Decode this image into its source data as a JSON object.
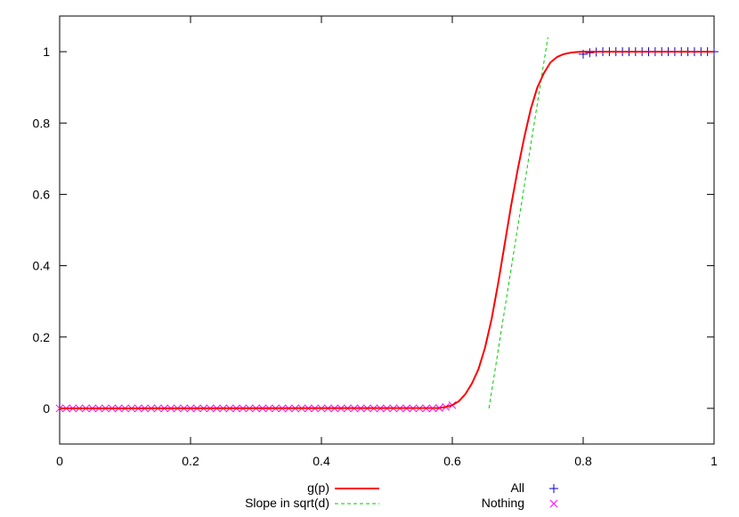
{
  "chart_data": {
    "type": "line",
    "title": "",
    "xlabel": "",
    "ylabel": "",
    "xlim": [
      0,
      1
    ],
    "ylim": [
      -0.1,
      1.1
    ],
    "x_ticks": [
      "0",
      "0.2",
      "0.4",
      "0.6",
      "0.8",
      "1"
    ],
    "y_ticks": [
      "0",
      "0.2",
      "0.4",
      "0.6",
      "0.8",
      "1"
    ],
    "grid": false,
    "legend": "bottom",
    "series": [
      {
        "name": "g(p)",
        "kind": "line",
        "color": "#ff0000",
        "x": [
          0.0,
          0.58,
          0.59,
          0.6,
          0.61,
          0.62,
          0.63,
          0.64,
          0.65,
          0.66,
          0.67,
          0.68,
          0.69,
          0.7,
          0.71,
          0.72,
          0.73,
          0.74,
          0.75,
          0.76,
          0.77,
          0.78,
          0.79,
          0.8,
          0.81,
          0.82,
          1.0
        ],
        "y": [
          0.0,
          0.001,
          0.004,
          0.009,
          0.02,
          0.04,
          0.07,
          0.11,
          0.17,
          0.25,
          0.35,
          0.46,
          0.57,
          0.67,
          0.76,
          0.84,
          0.9,
          0.94,
          0.97,
          0.985,
          0.993,
          0.997,
          0.999,
          1.0,
          1.0,
          1.0,
          1.0
        ]
      },
      {
        "name": "Slope in sqrt(d)",
        "kind": "dashed",
        "color": "#00cc00",
        "x": [
          0.656,
          0.746
        ],
        "y": [
          0.0,
          1.04
        ]
      },
      {
        "name": "All",
        "kind": "plus",
        "color": "#0000cc",
        "x": [
          0.8,
          0.81,
          0.82,
          0.83,
          0.84,
          0.85,
          0.86,
          0.87,
          0.88,
          0.89,
          0.9,
          0.91,
          0.92,
          0.93,
          0.94,
          0.95,
          0.96,
          0.97,
          0.98,
          0.99,
          1.0
        ],
        "y": [
          0.993,
          0.997,
          0.999,
          1.0,
          1.0,
          1.0,
          1.0,
          1.0,
          1.0,
          1.0,
          1.0,
          1.0,
          1.0,
          1.0,
          1.0,
          1.0,
          1.0,
          1.0,
          1.0,
          1.0,
          1.0
        ]
      },
      {
        "name": "Nothing",
        "kind": "cross",
        "color": "#ff00ff",
        "x": [
          0.0,
          0.01,
          0.02,
          0.03,
          0.04,
          0.05,
          0.06,
          0.07,
          0.08,
          0.09,
          0.1,
          0.11,
          0.12,
          0.13,
          0.14,
          0.15,
          0.16,
          0.17,
          0.18,
          0.19,
          0.2,
          0.21,
          0.22,
          0.23,
          0.24,
          0.25,
          0.26,
          0.27,
          0.28,
          0.29,
          0.3,
          0.31,
          0.32,
          0.33,
          0.34,
          0.35,
          0.36,
          0.37,
          0.38,
          0.39,
          0.4,
          0.41,
          0.42,
          0.43,
          0.44,
          0.45,
          0.46,
          0.47,
          0.48,
          0.49,
          0.5,
          0.51,
          0.52,
          0.53,
          0.54,
          0.55,
          0.56,
          0.57,
          0.58,
          0.59,
          0.6
        ],
        "y": [
          0.0,
          0.0,
          0.0,
          0.0,
          0.0,
          0.0,
          0.0,
          0.0,
          0.0,
          0.0,
          0.0,
          0.0,
          0.0,
          0.0,
          0.0,
          0.0,
          0.0,
          0.0,
          0.0,
          0.0,
          0.0,
          0.0,
          0.0,
          0.0,
          0.0,
          0.0,
          0.0,
          0.0,
          0.0,
          0.0,
          0.0,
          0.0,
          0.0,
          0.0,
          0.0,
          0.0,
          0.0,
          0.0,
          0.0,
          0.0,
          0.0,
          0.0,
          0.0,
          0.0,
          0.0,
          0.0,
          0.0,
          0.0,
          0.0,
          0.0,
          0.0,
          0.0,
          0.0,
          0.0,
          0.0,
          0.0,
          0.0,
          0.0,
          0.001,
          0.004,
          0.009
        ]
      }
    ]
  }
}
